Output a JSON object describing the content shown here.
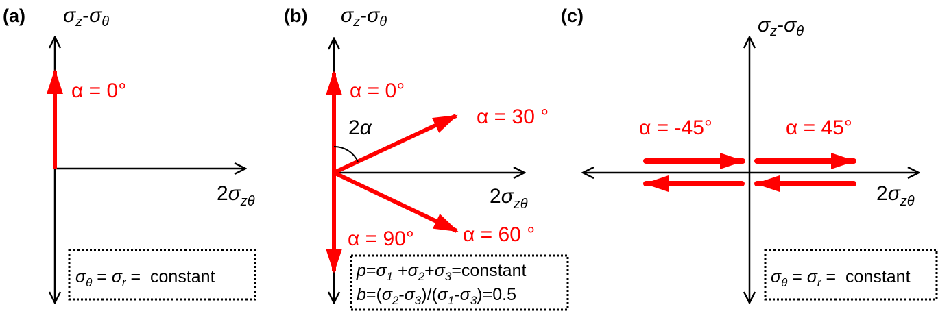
{
  "colors": {
    "vector": "#ff0000",
    "axis": "#000000"
  },
  "sym": {
    "sigma": "σ",
    "theta": "θ",
    "z": "z",
    "r": "r",
    "zt": "zθ",
    "two": "2",
    "minus": "-",
    "alpha": "α",
    "eq": " = ",
    "s1": "1",
    "s2": "2",
    "s3": "3"
  },
  "panels": {
    "a": {
      "label": "(a)",
      "alpha0": "α = 0°",
      "box": {
        "suffix": " constant"
      }
    },
    "b": {
      "label": "(b)",
      "alpha0": "α = 0°",
      "alpha30": "α = 30 °",
      "alpha60": "α = 60 °",
      "alpha90": "α = 90°",
      "angle": "2α",
      "box": {
        "p": "p",
        "eqsig": "=",
        "plus1": " +",
        "plus2": "+",
        "const": "=constant",
        "b": "b",
        "open": "=(",
        "dash": "-",
        "mid": ")/(",
        "end": ")=0.5"
      }
    },
    "c": {
      "label": "(c)",
      "alpham45": "α = -45°",
      "alpha45": "α = 45°",
      "box": {
        "suffix": " constant"
      }
    }
  }
}
